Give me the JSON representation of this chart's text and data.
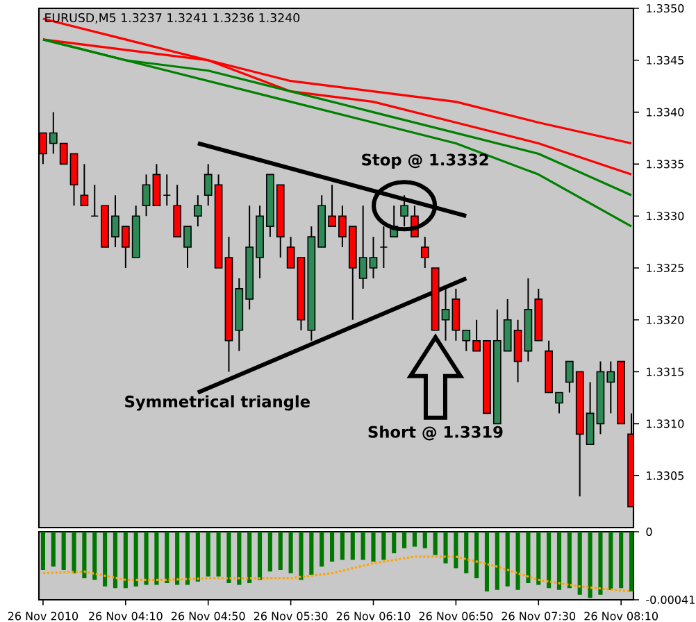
{
  "chart_data": [
    {
      "type": "candlestick",
      "title": "EURUSD,M5  1.3237 1.3241 1.3236 1.3240",
      "x": [
        "2010-11-26T03:30",
        "2010-11-26T03:35",
        "2010-11-26T03:40",
        "2010-11-26T03:45",
        "2010-11-26T03:50",
        "2010-11-26T03:55",
        "2010-11-26T04:00",
        "2010-11-26T04:05",
        "2010-11-26T04:10",
        "2010-11-26T04:15",
        "2010-11-26T04:20",
        "2010-11-26T04:25",
        "2010-11-26T04:30",
        "2010-11-26T04:35",
        "2010-11-26T04:40",
        "2010-11-26T04:45",
        "2010-11-26T04:50",
        "2010-11-26T04:55",
        "2010-11-26T05:00",
        "2010-11-26T05:05",
        "2010-11-26T05:10",
        "2010-11-26T05:15",
        "2010-11-26T05:20",
        "2010-11-26T05:25",
        "2010-11-26T05:30",
        "2010-11-26T05:35",
        "2010-11-26T05:40",
        "2010-11-26T05:45",
        "2010-11-26T05:50",
        "2010-11-26T05:55",
        "2010-11-26T06:00",
        "2010-11-26T06:05",
        "2010-11-26T06:10",
        "2010-11-26T06:15",
        "2010-11-26T06:20",
        "2010-11-26T06:25",
        "2010-11-26T06:30",
        "2010-11-26T06:35",
        "2010-11-26T06:40",
        "2010-11-26T06:45",
        "2010-11-26T06:50",
        "2010-11-26T06:55",
        "2010-11-26T07:00",
        "2010-11-26T07:05",
        "2010-11-26T07:10",
        "2010-11-26T07:15",
        "2010-11-26T07:20",
        "2010-11-26T07:25",
        "2010-11-26T07:30",
        "2010-11-26T07:35",
        "2010-11-26T07:40",
        "2010-11-26T07:45",
        "2010-11-26T07:50",
        "2010-11-26T07:55",
        "2010-11-26T08:00",
        "2010-11-26T08:05",
        "2010-11-26T08:10",
        "2010-11-26T08:15"
      ],
      "ohlc": [
        [
          1.3338,
          1.3338,
          1.3335,
          1.3336
        ],
        [
          1.3337,
          1.334,
          1.3336,
          1.3338
        ],
        [
          1.3337,
          1.3337,
          1.3335,
          1.3335
        ],
        [
          1.3336,
          1.3336,
          1.3331,
          1.3333
        ],
        [
          1.3332,
          1.3335,
          1.3331,
          1.3331
        ],
        [
          1.333,
          1.3333,
          1.333,
          1.333
        ],
        [
          1.3331,
          1.3331,
          1.3327,
          1.3327
        ],
        [
          1.3328,
          1.3332,
          1.3327,
          1.333
        ],
        [
          1.3329,
          1.3329,
          1.3325,
          1.3327
        ],
        [
          1.3326,
          1.3331,
          1.3326,
          1.333
        ],
        [
          1.3331,
          1.3334,
          1.333,
          1.3333
        ],
        [
          1.3334,
          1.3335,
          1.3331,
          1.3331
        ],
        [
          1.3332,
          1.3334,
          1.3331,
          1.3332
        ],
        [
          1.3331,
          1.3333,
          1.3328,
          1.3328
        ],
        [
          1.3327,
          1.3329,
          1.3325,
          1.3329
        ],
        [
          1.333,
          1.3332,
          1.3329,
          1.3331
        ],
        [
          1.3332,
          1.3335,
          1.3331,
          1.3334
        ],
        [
          1.3333,
          1.3334,
          1.3325,
          1.3325
        ],
        [
          1.3326,
          1.3328,
          1.3315,
          1.3318
        ],
        [
          1.3319,
          1.3324,
          1.3317,
          1.3323
        ],
        [
          1.3322,
          1.3331,
          1.3321,
          1.3327
        ],
        [
          1.3326,
          1.3331,
          1.3324,
          1.333
        ],
        [
          1.3329,
          1.3334,
          1.3328,
          1.3334
        ],
        [
          1.3333,
          1.3333,
          1.3326,
          1.3328
        ],
        [
          1.3327,
          1.3328,
          1.3325,
          1.3325
        ],
        [
          1.3326,
          1.3326,
          1.3319,
          1.332
        ],
        [
          1.3319,
          1.3329,
          1.3318,
          1.3328
        ],
        [
          1.3327,
          1.3332,
          1.3327,
          1.3331
        ],
        [
          1.333,
          1.3333,
          1.3329,
          1.3329
        ],
        [
          1.333,
          1.3331,
          1.3327,
          1.3328
        ],
        [
          1.3329,
          1.3329,
          1.332,
          1.3325
        ],
        [
          1.3324,
          1.3331,
          1.3323,
          1.3326
        ],
        [
          1.3325,
          1.3328,
          1.3324,
          1.3326
        ],
        [
          1.3327,
          1.3329,
          1.3325,
          1.3327
        ],
        [
          1.3328,
          1.3331,
          1.3328,
          1.3329
        ],
        [
          1.333,
          1.3332,
          1.3329,
          1.3331
        ],
        [
          1.333,
          1.3331,
          1.3328,
          1.3328
        ],
        [
          1.3327,
          1.3328,
          1.3325,
          1.3326
        ],
        [
          1.3325,
          1.3325,
          1.3319,
          1.3319
        ],
        [
          1.332,
          1.3323,
          1.3318,
          1.3321
        ],
        [
          1.3322,
          1.3323,
          1.3318,
          1.3319
        ],
        [
          1.3318,
          1.3319,
          1.3317,
          1.3319
        ],
        [
          1.3318,
          1.332,
          1.3317,
          1.3317
        ],
        [
          1.3318,
          1.3318,
          1.3311,
          1.3311
        ],
        [
          1.331,
          1.3321,
          1.331,
          1.3318
        ],
        [
          1.3317,
          1.3322,
          1.3317,
          1.332
        ],
        [
          1.3319,
          1.332,
          1.3314,
          1.3316
        ],
        [
          1.3317,
          1.3324,
          1.3316,
          1.3321
        ],
        [
          1.3322,
          1.3323,
          1.3318,
          1.3318
        ],
        [
          1.3317,
          1.3318,
          1.3313,
          1.3313
        ],
        [
          1.3312,
          1.3313,
          1.3311,
          1.3313
        ],
        [
          1.3314,
          1.3316,
          1.3313,
          1.3316
        ],
        [
          1.3315,
          1.3315,
          1.3303,
          1.3309
        ],
        [
          1.3308,
          1.3314,
          1.3308,
          1.3311
        ],
        [
          1.331,
          1.3316,
          1.3309,
          1.3315
        ],
        [
          1.3314,
          1.3316,
          1.3311,
          1.3315
        ],
        [
          1.3316,
          1.3316,
          1.331,
          1.331
        ],
        [
          1.3309,
          1.3311,
          1.3302,
          1.3302
        ]
      ],
      "colors": [
        "#ff0000",
        "#2e8b57",
        "#ff0000",
        "#ff0000",
        "#ff0000",
        "#000000",
        "#ff0000",
        "#2e8b57",
        "#ff0000",
        "#2e8b57",
        "#2e8b57",
        "#ff0000",
        "#000000",
        "#ff0000",
        "#2e8b57",
        "#2e8b57",
        "#2e8b57",
        "#ff0000",
        "#ff0000",
        "#2e8b57",
        "#2e8b57",
        "#2e8b57",
        "#2e8b57",
        "#ff0000",
        "#ff0000",
        "#ff0000",
        "#2e8b57",
        "#2e8b57",
        "#ff0000",
        "#ff0000",
        "#ff0000",
        "#2e8b57",
        "#2e8b57",
        "#000000",
        "#2e8b57",
        "#2e8b57",
        "#ff0000",
        "#ff0000",
        "#ff0000",
        "#2e8b57",
        "#ff0000",
        "#2e8b57",
        "#ff0000",
        "#ff0000",
        "#2e8b57",
        "#2e8b57",
        "#ff0000",
        "#2e8b57",
        "#ff0000",
        "#ff0000",
        "#2e8b57",
        "#2e8b57",
        "#ff0000",
        "#2e8b57",
        "#2e8b57",
        "#2e8b57",
        "#ff0000",
        "#ff0000"
      ],
      "series": [
        {
          "type": "line",
          "color": "#ff0000",
          "x": [
            "2010-11-26T03:30",
            "2010-11-26T04:10",
            "2010-11-26T04:50",
            "2010-11-26T05:30",
            "2010-11-26T06:10",
            "2010-11-26T06:50",
            "2010-11-26T07:30",
            "2010-11-26T08:15"
          ],
          "values": [
            1.3349,
            1.3347,
            1.3345,
            1.3343,
            1.3342,
            1.3341,
            1.3339,
            1.3337
          ]
        },
        {
          "type": "line",
          "color": "#ff0000",
          "x": [
            "2010-11-26T03:30",
            "2010-11-26T04:10",
            "2010-11-26T04:50",
            "2010-11-26T05:30",
            "2010-11-26T06:10",
            "2010-11-26T06:50",
            "2010-11-26T07:30",
            "2010-11-26T08:15"
          ],
          "values": [
            1.3347,
            1.3346,
            1.3345,
            1.3342,
            1.3341,
            1.3339,
            1.3337,
            1.3334
          ]
        },
        {
          "type": "line",
          "color": "#008000",
          "x": [
            "2010-11-26T03:30",
            "2010-11-26T04:10",
            "2010-11-26T04:50",
            "2010-11-26T05:30",
            "2010-11-26T06:10",
            "2010-11-26T06:50",
            "2010-11-26T07:30",
            "2010-11-26T08:15"
          ],
          "values": [
            1.3347,
            1.3345,
            1.3344,
            1.3342,
            1.334,
            1.3338,
            1.3336,
            1.3332
          ]
        },
        {
          "type": "line",
          "color": "#008000",
          "x": [
            "2010-11-26T03:30",
            "2010-11-26T04:10",
            "2010-11-26T04:50",
            "2010-11-26T05:30",
            "2010-11-26T06:10",
            "2010-11-26T06:50",
            "2010-11-26T07:30",
            "2010-11-26T08:15"
          ],
          "values": [
            1.3347,
            1.3345,
            1.3343,
            1.3341,
            1.3339,
            1.3337,
            1.3334,
            1.3329
          ]
        },
        {
          "type": "line",
          "color": "#000000",
          "x": [
            "2010-11-26T04:45",
            "2010-11-26T06:55"
          ],
          "values": [
            1.3337,
            1.333
          ]
        },
        {
          "type": "line",
          "color": "#000000",
          "x": [
            "2010-11-26T04:45",
            "2010-11-26T06:55"
          ],
          "values": [
            1.3313,
            1.3324
          ]
        }
      ],
      "annotations": [
        {
          "text": "Stop @ 1.3332",
          "x": "2010-11-26T06:25",
          "y": 1.3331
        },
        "Short @ 1.3319",
        "Symmetrical triangle"
      ],
      "xlim": [
        "2010-11-26T03:28",
        "2010-11-26T08:16"
      ],
      "ylim": [
        1.33,
        1.335
      ],
      "yticks": [
        1.3305,
        {
          "value": 1.331,
          "label": "1.3310"
        },
        1.3315,
        {
          "value": 1.332,
          "label": "1.3320"
        },
        1.3325,
        {
          "value": 1.333,
          "label": "1.3330"
        },
        1.3335,
        {
          "value": 1.334,
          "label": "1.3340"
        },
        1.3345,
        {
          "value": 1.335,
          "label": "1.3350"
        }
      ],
      "tick_labels": "y"
    },
    {
      "type": "bar",
      "x": [
        "2010-11-26T03:30",
        "2010-11-26T03:35",
        "2010-11-26T03:40",
        "2010-11-26T03:45",
        "2010-11-26T03:50",
        "2010-11-26T03:55",
        "2010-11-26T04:00",
        "2010-11-26T04:05",
        "2010-11-26T04:10",
        "2010-11-26T04:15",
        "2010-11-26T04:20",
        "2010-11-26T04:25",
        "2010-11-26T04:30",
        "2010-11-26T04:35",
        "2010-11-26T04:40",
        "2010-11-26T04:45",
        "2010-11-26T04:50",
        "2010-11-26T04:55",
        "2010-11-26T05:00",
        "2010-11-26T05:05",
        "2010-11-26T05:10",
        "2010-11-26T05:15",
        "2010-11-26T05:20",
        "2010-11-26T05:25",
        "2010-11-26T05:30",
        "2010-11-26T05:35",
        "2010-11-26T05:40",
        "2010-11-26T05:45",
        "2010-11-26T05:50",
        "2010-11-26T05:55",
        "2010-11-26T06:00",
        "2010-11-26T06:05",
        "2010-11-26T06:10",
        "2010-11-26T06:15",
        "2010-11-26T06:20",
        "2010-11-26T06:25",
        "2010-11-26T06:30",
        "2010-11-26T06:35",
        "2010-11-26T06:40",
        "2010-11-26T06:45",
        "2010-11-26T06:50",
        "2010-11-26T06:55",
        "2010-11-26T07:00",
        "2010-11-26T07:05",
        "2010-11-26T07:10",
        "2010-11-26T07:15",
        "2010-11-26T07:20",
        "2010-11-26T07:25",
        "2010-11-26T07:30",
        "2010-11-26T07:35",
        "2010-11-26T07:40",
        "2010-11-26T07:45",
        "2010-11-26T07:50",
        "2010-11-26T07:55",
        "2010-11-26T08:00",
        "2010-11-26T08:05",
        "2010-11-26T08:10",
        "2010-11-26T08:15"
      ],
      "series": [
        {
          "type": "bar",
          "color": "#007800",
          "values": [
            -0.00023,
            -0.00021,
            -0.00023,
            -0.00025,
            -0.00028,
            -0.00029,
            -0.00033,
            -0.00034,
            -0.00034,
            -0.00033,
            -0.00032,
            -0.00032,
            -0.00031,
            -0.00032,
            -0.00032,
            -0.0003,
            -0.00027,
            -0.00027,
            -0.00031,
            -0.00032,
            -0.00031,
            -0.00029,
            -0.00024,
            -0.00023,
            -0.00025,
            -0.00029,
            -0.00026,
            -0.00021,
            -0.00018,
            -0.00017,
            -0.00017,
            -0.00017,
            -0.00018,
            -0.00017,
            -0.00013,
            -0.0001,
            -9e-05,
            -0.0001,
            -0.00014,
            -0.00019,
            -0.00022,
            -0.00025,
            -0.00028,
            -0.00036,
            -0.00035,
            -0.00033,
            -0.00035,
            -0.00031,
            -0.00032,
            -0.00034,
            -0.00035,
            -0.00034,
            -0.00038,
            -0.0004,
            -0.00038,
            -0.00035,
            -0.00034,
            -0.00036
          ]
        },
        {
          "type": "line",
          "color": "#ffa500",
          "line_style": "dotted",
          "x": [
            "2010-11-26T03:30",
            "2010-11-26T03:50",
            "2010-11-26T04:10",
            "2010-11-26T04:30",
            "2010-11-26T04:50",
            "2010-11-26T05:10",
            "2010-11-26T05:30",
            "2010-11-26T05:50",
            "2010-11-26T06:10",
            "2010-11-26T06:30",
            "2010-11-26T06:50",
            "2010-11-26T07:10",
            "2010-11-26T07:30",
            "2010-11-26T07:50",
            "2010-11-26T08:15"
          ],
          "values": [
            -0.00025,
            -0.00024,
            -0.00029,
            -0.00029,
            -0.00028,
            -0.00028,
            -0.00028,
            -0.00025,
            -0.00019,
            -0.00015,
            -0.00015,
            -0.00021,
            -0.00029,
            -0.00033,
            -0.00036
          ]
        }
      ],
      "xlim": [
        "2010-11-26T03:28",
        "2010-11-26T08:16"
      ],
      "ylim": [
        -0.00041,
        0
      ],
      "xticks": [
        {
          "value": "2010-11-26T03:30",
          "label": "26 Nov 2010"
        },
        {
          "value": "2010-11-26T04:10",
          "label": "26 Nov 04:10"
        },
        {
          "value": "2010-11-26T04:50",
          "label": "26 Nov 04:50"
        },
        {
          "value": "2010-11-26T05:30",
          "label": "26 Nov 05:30"
        },
        {
          "value": "2010-11-26T06:10",
          "label": "26 Nov 06:10"
        },
        {
          "value": "2010-11-26T06:50",
          "label": "26 Nov 06:50"
        },
        {
          "value": "2010-11-26T07:30",
          "label": "26 Nov 07:30"
        },
        {
          "value": "2010-11-26T08:10",
          "label": "26 Nov 08:10"
        }
      ],
      "yticks": [
        0,
        -0.00041
      ]
    }
  ]
}
